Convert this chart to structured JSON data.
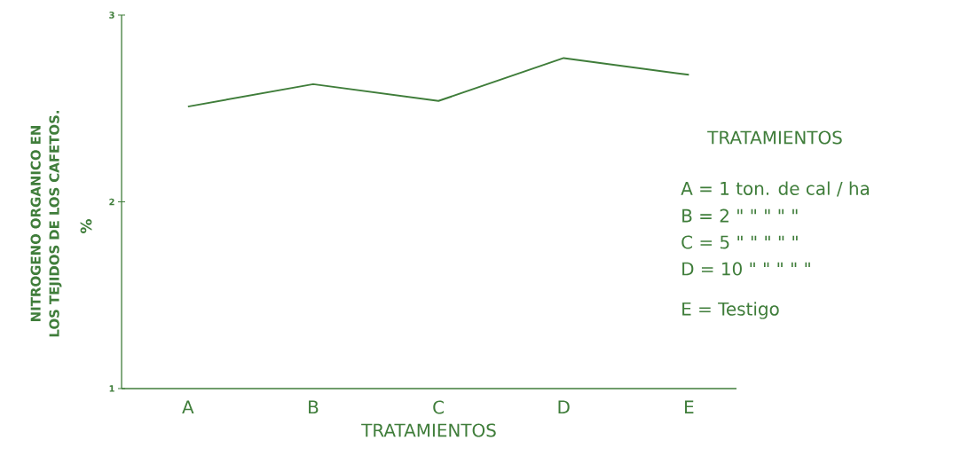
{
  "chart_data": {
    "type": "line",
    "xlabel": "TRATAMIENTOS",
    "ylabel": "NITROGENO ORGANICO EN LOS TEJIDOS DE LOS CAFETOS.",
    "categories": [
      "A",
      "B",
      "C",
      "D",
      "E"
    ],
    "series": [
      {
        "color": "#3f7d3a",
        "values": [
          2.51,
          2.63,
          2.54,
          2.77,
          2.68
        ]
      }
    ],
    "ylim": [
      1,
      3
    ],
    "yticks": [
      1,
      2,
      3
    ],
    "annotations": [
      "%",
      "TRATAMIENTOS",
      "A = 1 ton. de cal / ha",
      "B = 2 \"    \"  \"  \"  \"",
      "C = 5 \"    \"  \"  \"  \"",
      "D = 10 \"   \"  \"  \"  \"",
      "E = Testigo"
    ]
  }
}
